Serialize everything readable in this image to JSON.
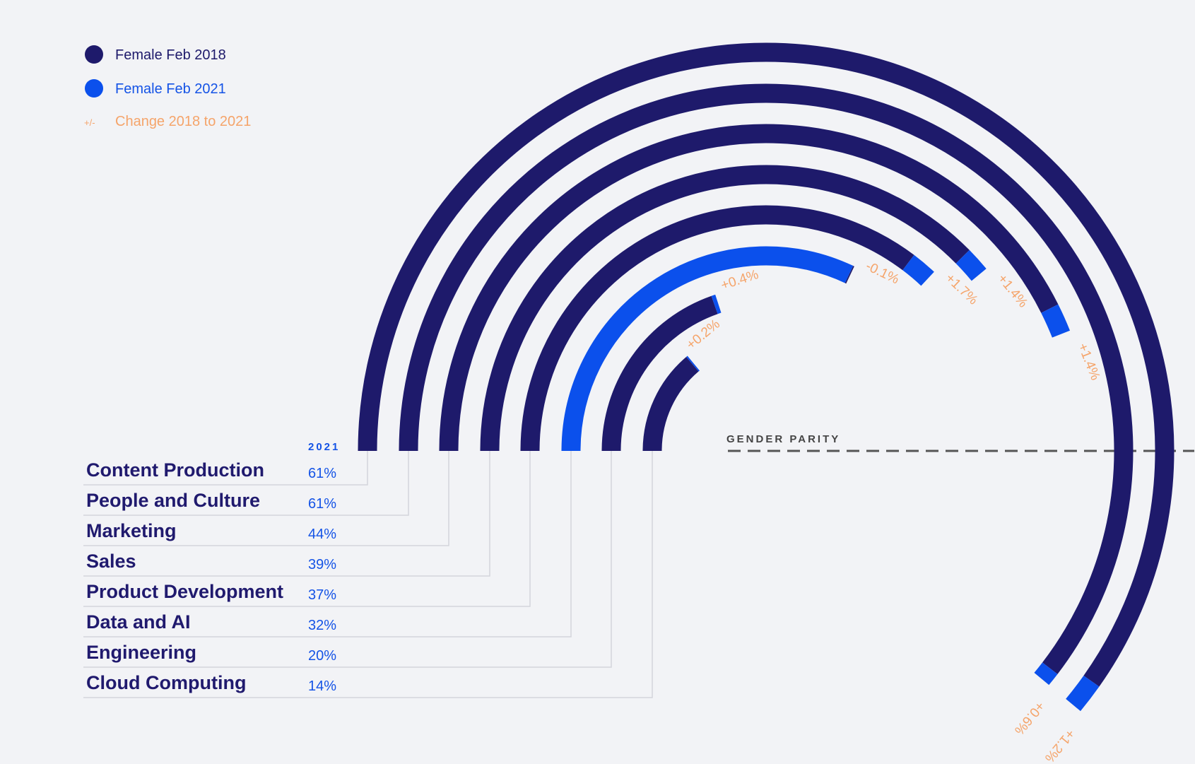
{
  "legend": {
    "female_2018": "Female Feb 2018",
    "female_2021": "Female Feb 2021",
    "change_symbol": "+/-",
    "change_label": "Change 2018 to 2021"
  },
  "colors": {
    "female_2018": "#1e1a6b",
    "female_2021": "#0b50ec",
    "change": "#f5a46a",
    "parity_line": "#555555",
    "connector": "#d3d5db"
  },
  "table_header": "2021",
  "parity_label": "GENDER PARITY",
  "chart_data": {
    "type": "radial-bar",
    "ylim": [
      0,
      100
    ],
    "categories": [
      "Content Production",
      "People and Culture",
      "Marketing",
      "Sales",
      "Product Development",
      "Data and AI",
      "Engineering",
      "Cloud Computing"
    ],
    "series": [
      {
        "name": "Female Feb 2018",
        "values": [
          59.8,
          60.4,
          42.6,
          37.6,
          35.3,
          32.1,
          19.6,
          13.8
        ]
      },
      {
        "name": "Female Feb 2021",
        "values": [
          61,
          61,
          44,
          39,
          37,
          32,
          20,
          14
        ]
      }
    ],
    "labels_2021": [
      "61%",
      "61%",
      "44%",
      "39%",
      "37%",
      "32%",
      "20%",
      "14%"
    ],
    "change": [
      "+1.2%",
      "+0.6%",
      "+1.4%",
      "+1.4%",
      "+1.7%",
      "-0.1%",
      "+0.4%",
      "+0.2%"
    ],
    "reference_line": {
      "value": 50,
      "label": "GENDER PARITY"
    }
  }
}
